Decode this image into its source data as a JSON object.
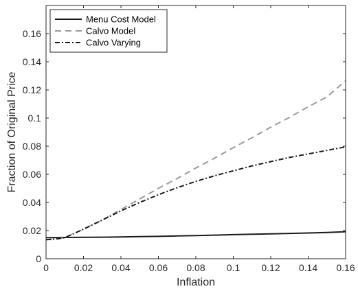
{
  "chart_data": {
    "type": "line",
    "title": "",
    "xlabel": "Inflation",
    "ylabel": "Fraction of Original Price",
    "xlim": [
      0,
      0.16
    ],
    "ylim": [
      0,
      0.18
    ],
    "xticks": [
      "0",
      "0.02",
      "0.04",
      "0.06",
      "0.08",
      "0.1",
      "0.12",
      "0.14",
      "0.16"
    ],
    "yticks": [
      "0",
      "0.02",
      "0.04",
      "0.06",
      "0.08",
      "0.1",
      "0.12",
      "0.14",
      "0.16"
    ],
    "grid": false,
    "legend_position": "top-left",
    "x": [
      0,
      0.005,
      0.01,
      0.02,
      0.03,
      0.04,
      0.05,
      0.06,
      0.07,
      0.08,
      0.09,
      0.1,
      0.11,
      0.12,
      0.13,
      0.14,
      0.15,
      0.16
    ],
    "series": [
      {
        "name": "Menu Cost Model",
        "style": "solid",
        "color": "#1a1a1a",
        "values": [
          0.015,
          0.015,
          0.0151,
          0.0152,
          0.0153,
          0.0155,
          0.0157,
          0.0159,
          0.0162,
          0.0165,
          0.0168,
          0.0171,
          0.0174,
          0.0177,
          0.018,
          0.0183,
          0.0187,
          0.0192
        ]
      },
      {
        "name": "Calvo Model",
        "style": "dashed",
        "color": "#999999",
        "values": [
          0.0135,
          0.014,
          0.015,
          0.021,
          0.0275,
          0.035,
          0.0425,
          0.05,
          0.057,
          0.0645,
          0.0715,
          0.079,
          0.086,
          0.0935,
          0.1005,
          0.108,
          0.115,
          0.1265
        ]
      },
      {
        "name": "Calvo Varying",
        "style": "dashdot",
        "color": "#1a1a1a",
        "values": [
          0.0135,
          0.014,
          0.015,
          0.021,
          0.0275,
          0.034,
          0.04,
          0.0455,
          0.0505,
          0.055,
          0.059,
          0.0625,
          0.066,
          0.069,
          0.072,
          0.0745,
          0.077,
          0.0795
        ]
      }
    ]
  }
}
